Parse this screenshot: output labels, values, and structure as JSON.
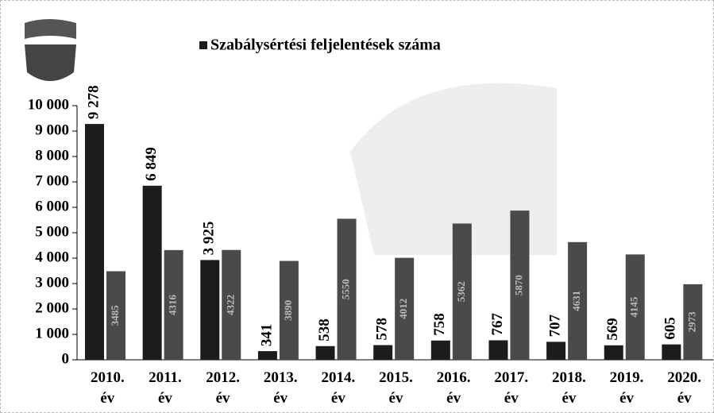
{
  "chart_data": {
    "type": "bar",
    "categories": [
      "2010. év",
      "2011. év",
      "2012. év",
      "2013. év",
      "2014. év",
      "2015. év",
      "2016. év",
      "2017. év",
      "2018. év",
      "2019. év",
      "2020. év"
    ],
    "series": [
      {
        "name": "Szabálysértési feljelentések száma",
        "color": "#1c1c1c",
        "values": [
          9278,
          6849,
          3925,
          341,
          538,
          578,
          758,
          767,
          707,
          569,
          605
        ],
        "value_labels": [
          "9 278",
          "6 849",
          "3 925",
          "341",
          "538",
          "578",
          "758",
          "767",
          "707",
          "569",
          "605"
        ]
      },
      {
        "color": "#4a4a4a",
        "values": [
          3485,
          4316,
          4322,
          3890,
          5550,
          4012,
          5362,
          5870,
          4631,
          4145,
          2973
        ]
      }
    ],
    "ylim": [
      0,
      10000
    ],
    "yticks": [
      0,
      {
        "value": 1000,
        "label": "1 000"
      },
      {
        "value": 2000,
        "label": "2 000"
      },
      {
        "value": 3000,
        "label": "3 000"
      },
      {
        "value": 4000,
        "label": "4 000"
      },
      {
        "value": 5000,
        "label": "5 000"
      },
      {
        "value": 6000,
        "label": "6 000"
      },
      {
        "value": 7000,
        "label": "7 000"
      },
      {
        "value": 8000,
        "label": "8 000"
      },
      {
        "value": 9000,
        "label": "9 000"
      },
      {
        "value": 10000,
        "label": "10 000"
      }
    ],
    "legend": "top"
  }
}
